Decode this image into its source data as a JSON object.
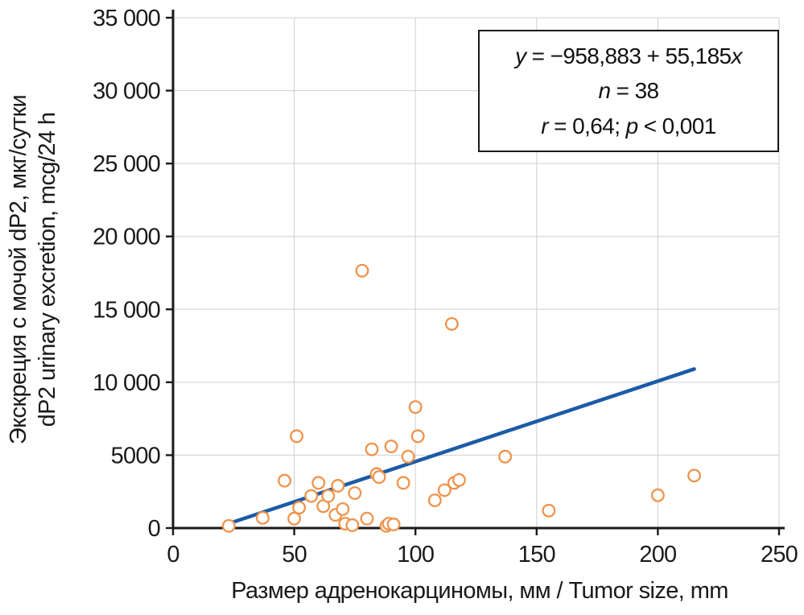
{
  "chart_data": {
    "type": "scatter",
    "title": "",
    "xlabel": "Размер адренокарциномы, мм / Tumor size, mm",
    "ylabel_lines": [
      "Экскреция с мочой dP2, мкг/сутки",
      "dP2 urinary excretion, mcg/24 h"
    ],
    "xlim": [
      0,
      250
    ],
    "ylim": [
      0,
      35000
    ],
    "x_ticks": [
      0,
      50,
      100,
      150,
      200,
      250
    ],
    "x_tick_labels": [
      "0",
      "50",
      "100",
      "150",
      "200",
      "250"
    ],
    "y_ticks": [
      0,
      5000,
      10000,
      15000,
      20000,
      25000,
      30000,
      35000
    ],
    "y_tick_labels": [
      "0",
      "5000",
      "10 000",
      "15 000",
      "20 000",
      "25 000",
      "30 000",
      "35 000"
    ],
    "grid": true,
    "legend_position": "none",
    "point_color": "#f0934c",
    "line_color": "#1c5ba6",
    "n": 38,
    "points": [
      [
        23,
        150
      ],
      [
        37,
        700
      ],
      [
        46,
        3250
      ],
      [
        50,
        650
      ],
      [
        51,
        6300
      ],
      [
        52,
        1400
      ],
      [
        57,
        2200
      ],
      [
        60,
        3100
      ],
      [
        62,
        1500
      ],
      [
        64,
        2200
      ],
      [
        67,
        900
      ],
      [
        68,
        2900
      ],
      [
        70,
        1300
      ],
      [
        71,
        300
      ],
      [
        74,
        200
      ],
      [
        75,
        2400
      ],
      [
        78,
        17650
      ],
      [
        80,
        650
      ],
      [
        82,
        5400
      ],
      [
        84,
        3700
      ],
      [
        85,
        3500
      ],
      [
        88,
        150
      ],
      [
        89,
        300
      ],
      [
        90,
        5600
      ],
      [
        91,
        250
      ],
      [
        95,
        3100
      ],
      [
        97,
        4900
      ],
      [
        100,
        8300
      ],
      [
        101,
        6300
      ],
      [
        108,
        1900
      ],
      [
        112,
        2600
      ],
      [
        115,
        14000
      ],
      [
        116,
        3100
      ],
      [
        118,
        3300
      ],
      [
        137,
        4900
      ],
      [
        155,
        1200
      ],
      [
        200,
        2250
      ],
      [
        215,
        3600
      ]
    ],
    "regression": {
      "intercept": -958.883,
      "slope": 55.185,
      "x_range": [
        23,
        215
      ]
    },
    "annotation": {
      "lines": [
        [
          {
            "t": "y",
            "i": true
          },
          {
            "t": " = −958,883 + 55,185",
            "i": false
          },
          {
            "t": "x",
            "i": true
          }
        ],
        [
          {
            "t": "n",
            "i": true
          },
          {
            "t": " = 38",
            "i": false
          }
        ],
        [
          {
            "t": "r",
            "i": true
          },
          {
            "t": " = 0,64; ",
            "i": false
          },
          {
            "t": "p",
            "i": true
          },
          {
            "t": " < 0,001",
            "i": false
          }
        ]
      ]
    }
  }
}
